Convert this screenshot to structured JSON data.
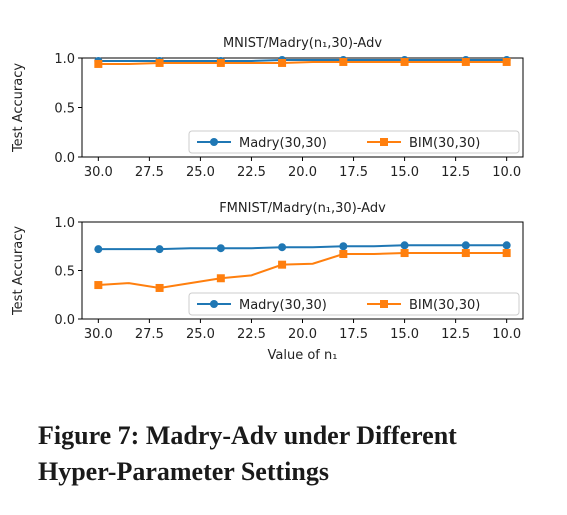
{
  "chart_data": [
    {
      "type": "line",
      "title": "MNIST/Madry(n₁,30)-Adv",
      "xlabel": "",
      "ylabel": "Test Accuracy",
      "x": [
        30.0,
        28.5,
        27.0,
        25.5,
        24.0,
        22.5,
        21.0,
        19.5,
        18.0,
        16.5,
        15.0,
        13.5,
        12.0,
        10.5,
        10.0
      ],
      "x_reversed": true,
      "xlim": [
        30.8,
        9.2
      ],
      "ylim": [
        0.0,
        1.0
      ],
      "xticks": [
        "30.0",
        "27.5",
        "25.0",
        "22.5",
        "20.0",
        "17.5",
        "15.0",
        "12.5",
        "10.0"
      ],
      "yticks": [
        "0.0",
        "0.5",
        "1.0"
      ],
      "legend_placement": "lower-right",
      "grid": false,
      "series": [
        {
          "name": "Madry(30,30)",
          "color": "#1f77b4",
          "marker": "circle",
          "values": [
            0.97,
            0.97,
            0.97,
            0.97,
            0.97,
            0.97,
            0.98,
            0.98,
            0.98,
            0.98,
            0.98,
            0.98,
            0.98,
            0.98,
            0.98
          ]
        },
        {
          "name": "BIM(30,30)",
          "color": "#ff7f0e",
          "marker": "square",
          "values": [
            0.94,
            0.94,
            0.95,
            0.95,
            0.95,
            0.95,
            0.95,
            0.96,
            0.96,
            0.96,
            0.96,
            0.96,
            0.96,
            0.96,
            0.96
          ]
        }
      ]
    },
    {
      "type": "line",
      "title": "FMNIST/Madry(n₁,30)-Adv",
      "xlabel": "Value of n₁",
      "ylabel": "Test Accuracy",
      "x": [
        30.0,
        28.5,
        27.0,
        25.5,
        24.0,
        22.5,
        21.0,
        19.5,
        18.0,
        16.5,
        15.0,
        13.5,
        12.0,
        10.5,
        10.0
      ],
      "x_reversed": true,
      "xlim": [
        30.8,
        9.2
      ],
      "ylim": [
        0.0,
        1.0
      ],
      "xticks": [
        "30.0",
        "27.5",
        "25.0",
        "22.5",
        "20.0",
        "17.5",
        "15.0",
        "12.5",
        "10.0"
      ],
      "yticks": [
        "0.0",
        "0.5",
        "1.0"
      ],
      "legend_placement": "lower-right",
      "grid": false,
      "series": [
        {
          "name": "Madry(30,30)",
          "color": "#1f77b4",
          "marker": "circle",
          "values": [
            0.72,
            0.72,
            0.72,
            0.73,
            0.73,
            0.73,
            0.74,
            0.74,
            0.75,
            0.75,
            0.76,
            0.76,
            0.76,
            0.76,
            0.76
          ]
        },
        {
          "name": "BIM(30,30)",
          "color": "#ff7f0e",
          "marker": "square",
          "values": [
            0.35,
            0.37,
            0.32,
            0.37,
            0.42,
            0.45,
            0.56,
            0.57,
            0.67,
            0.67,
            0.68,
            0.68,
            0.68,
            0.68,
            0.68
          ]
        }
      ]
    }
  ],
  "caption": "Figure 7: Madry-Adv under Different Hyper-Parameter Settings"
}
